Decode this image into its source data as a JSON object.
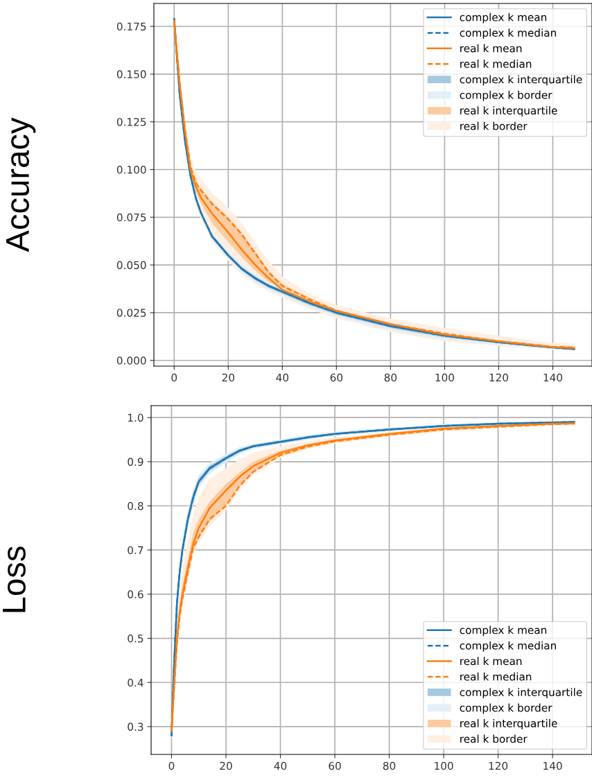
{
  "chart_data": [
    {
      "type": "line",
      "ylabel": "Accuracy",
      "xlim": [
        -7.5,
        154.5
      ],
      "ylim": [
        -0.003,
        0.187
      ],
      "xticks": [
        0,
        20,
        40,
        60,
        80,
        100,
        120,
        140
      ],
      "yticks": [
        {
          "value": 0,
          "label": "0.000"
        },
        {
          "value": 0.025,
          "label": "0.025"
        },
        {
          "value": 0.05,
          "label": "0.050"
        },
        {
          "value": 0.075,
          "label": "0.075"
        },
        {
          "value": 0.1,
          "label": "0.100"
        },
        {
          "value": 0.125,
          "label": "0.125"
        },
        {
          "value": 0.15,
          "label": "0.150"
        },
        {
          "value": 0.175,
          "label": "0.175"
        }
      ],
      "grid": true,
      "legend": "top right",
      "x": [
        0,
        2,
        4,
        6,
        8,
        10,
        14,
        20,
        25,
        30,
        35,
        40,
        50,
        60,
        80,
        100,
        120,
        140,
        148
      ],
      "series": [
        {
          "name": "complex k mean",
          "color": "#1f77b4",
          "line_style": "solid",
          "values": [
            0.179,
            0.14,
            0.115,
            0.097,
            0.085,
            0.077,
            0.065,
            0.055,
            0.048,
            0.043,
            0.039,
            0.036,
            0.03,
            0.025,
            0.018,
            0.013,
            0.0095,
            0.0068,
            0.006
          ]
        },
        {
          "name": "complex k median",
          "color": "#1f77b4",
          "line_style": "dashed",
          "values": [
            0.179,
            0.14,
            0.115,
            0.097,
            0.085,
            0.077,
            0.065,
            0.055,
            0.048,
            0.043,
            0.039,
            0.036,
            0.03,
            0.025,
            0.018,
            0.013,
            0.0095,
            0.0068,
            0.006
          ]
        },
        {
          "name": "real k mean",
          "color": "#ff7f0e",
          "line_style": "solid",
          "values": [
            0.178,
            0.145,
            0.12,
            0.1,
            0.091,
            0.085,
            0.077,
            0.067,
            0.058,
            0.05,
            0.043,
            0.037,
            0.031,
            0.026,
            0.019,
            0.0135,
            0.01,
            0.007,
            0.0065
          ]
        },
        {
          "name": "real k median",
          "color": "#ff7f0e",
          "line_style": "dashed",
          "values": [
            0.178,
            0.146,
            0.121,
            0.102,
            0.093,
            0.089,
            0.082,
            0.074,
            0.066,
            0.056,
            0.046,
            0.039,
            0.032,
            0.026,
            0.019,
            0.014,
            0.01,
            0.0072,
            0.0068
          ]
        },
        {
          "name": "complex k interquartile",
          "type": "area",
          "color": "#a6c9e2",
          "values": [
            null,
            null,
            null,
            null,
            null,
            null,
            null,
            null,
            null,
            null,
            null,
            null,
            null,
            null,
            null,
            null,
            null,
            null,
            null
          ],
          "lower": [
            0.177,
            0.139,
            0.114,
            0.096,
            0.084,
            0.076,
            0.064,
            0.054,
            0.047,
            0.042,
            0.038,
            0.035,
            0.029,
            0.024,
            0.017,
            0.012,
            0.009,
            0.0063,
            0.0055
          ],
          "upper": [
            0.179,
            0.141,
            0.116,
            0.098,
            0.086,
            0.078,
            0.066,
            0.056,
            0.049,
            0.044,
            0.04,
            0.037,
            0.031,
            0.026,
            0.019,
            0.014,
            0.01,
            0.0073,
            0.0065
          ]
        },
        {
          "name": "complex k border",
          "type": "area",
          "color": "#e4eef6",
          "values": [
            null,
            null,
            null,
            null,
            null,
            null,
            null,
            null,
            null,
            null,
            null,
            null,
            null,
            null,
            null,
            null,
            null,
            null,
            null
          ],
          "lower": [
            0.176,
            0.138,
            0.113,
            0.095,
            0.083,
            0.075,
            0.063,
            0.053,
            0.046,
            0.041,
            0.037,
            0.034,
            0.028,
            0.023,
            0.016,
            0.011,
            0.008,
            0.0058,
            0.005
          ],
          "upper": [
            0.18,
            0.142,
            0.117,
            0.099,
            0.087,
            0.079,
            0.067,
            0.057,
            0.05,
            0.045,
            0.041,
            0.038,
            0.032,
            0.027,
            0.02,
            0.015,
            0.011,
            0.0078,
            0.007
          ]
        },
        {
          "name": "real k interquartile",
          "type": "area",
          "color": "#fdcba0",
          "values": [
            null,
            null,
            null,
            null,
            null,
            null,
            null,
            null,
            null,
            null,
            null,
            null,
            null,
            null,
            null,
            null,
            null,
            null,
            null
          ],
          "lower": [
            0.177,
            0.143,
            0.118,
            0.098,
            0.088,
            0.082,
            0.072,
            0.062,
            0.054,
            0.047,
            0.041,
            0.036,
            0.03,
            0.025,
            0.018,
            0.013,
            0.0095,
            0.0066,
            0.006
          ],
          "upper": [
            0.179,
            0.147,
            0.122,
            0.103,
            0.094,
            0.09,
            0.083,
            0.075,
            0.067,
            0.057,
            0.047,
            0.04,
            0.033,
            0.027,
            0.02,
            0.015,
            0.011,
            0.0077,
            0.0072
          ]
        },
        {
          "name": "real k border",
          "type": "area",
          "color": "#ffefe2",
          "values": [
            null,
            null,
            null,
            null,
            null,
            null,
            null,
            null,
            null,
            null,
            null,
            null,
            null,
            null,
            null,
            null,
            null,
            null,
            null
          ],
          "lower": [
            0.175,
            0.137,
            0.112,
            0.094,
            0.082,
            0.074,
            0.062,
            0.052,
            0.045,
            0.04,
            0.036,
            0.033,
            0.027,
            0.022,
            0.015,
            0.01,
            0.0075,
            0.0055,
            0.0048
          ],
          "upper": [
            0.181,
            0.15,
            0.125,
            0.108,
            0.099,
            0.095,
            0.088,
            0.08,
            0.072,
            0.062,
            0.052,
            0.044,
            0.035,
            0.029,
            0.022,
            0.017,
            0.013,
            0.0092,
            0.0088
          ]
        }
      ]
    },
    {
      "type": "line",
      "ylabel": "Loss",
      "xlim": [
        -7.5,
        154.5
      ],
      "ylim": [
        0.237,
        1.027
      ],
      "xticks": [
        0,
        20,
        40,
        60,
        80,
        100,
        120,
        140
      ],
      "yticks": [
        0.3,
        0.4,
        0.5,
        0.6,
        0.7,
        0.8,
        0.9,
        {
          "value": 1.0,
          "label": "1.0"
        }
      ],
      "grid": true,
      "legend": "bottom right",
      "x": [
        0,
        1,
        2,
        3,
        4,
        6,
        8,
        10,
        14,
        20,
        25,
        30,
        40,
        50,
        60,
        80,
        100,
        120,
        140,
        148
      ],
      "series": [
        {
          "name": "complex k mean",
          "color": "#1f77b4",
          "line_style": "solid",
          "values": [
            0.28,
            0.45,
            0.58,
            0.65,
            0.7,
            0.77,
            0.82,
            0.855,
            0.885,
            0.908,
            0.925,
            0.935,
            0.945,
            0.955,
            0.963,
            0.973,
            0.981,
            0.986,
            0.989,
            0.99
          ]
        },
        {
          "name": "complex k median",
          "color": "#1f77b4",
          "line_style": "dashed",
          "values": [
            0.28,
            0.45,
            0.58,
            0.65,
            0.7,
            0.77,
            0.82,
            0.855,
            0.885,
            0.908,
            0.925,
            0.935,
            0.945,
            0.955,
            0.963,
            0.973,
            0.981,
            0.986,
            0.989,
            0.99
          ]
        },
        {
          "name": "real k mean",
          "color": "#ff7f0e",
          "line_style": "solid",
          "values": [
            0.29,
            0.4,
            0.5,
            0.56,
            0.6,
            0.66,
            0.715,
            0.75,
            0.795,
            0.835,
            0.866,
            0.89,
            0.92,
            0.937,
            0.948,
            0.963,
            0.975,
            0.981,
            0.986,
            0.987
          ]
        },
        {
          "name": "real k median",
          "color": "#ff7f0e",
          "line_style": "dashed",
          "values": [
            0.29,
            0.39,
            0.49,
            0.55,
            0.59,
            0.65,
            0.705,
            0.73,
            0.77,
            0.8,
            0.845,
            0.877,
            0.915,
            0.934,
            0.946,
            0.961,
            0.973,
            0.979,
            0.985,
            0.986
          ]
        },
        {
          "name": "complex k interquartile",
          "type": "area",
          "color": "#a6c9e2",
          "values": [
            null,
            null,
            null,
            null,
            null,
            null,
            null,
            null,
            null,
            null,
            null,
            null,
            null,
            null,
            null,
            null,
            null,
            null,
            null,
            null
          ],
          "lower": [
            0.27,
            0.44,
            0.57,
            0.64,
            0.69,
            0.76,
            0.81,
            0.848,
            0.879,
            0.903,
            0.921,
            0.932,
            0.942,
            0.952,
            0.961,
            0.971,
            0.979,
            0.984,
            0.988,
            0.989
          ],
          "upper": [
            0.29,
            0.46,
            0.59,
            0.66,
            0.71,
            0.78,
            0.83,
            0.862,
            0.891,
            0.913,
            0.929,
            0.938,
            0.948,
            0.958,
            0.965,
            0.975,
            0.983,
            0.988,
            0.99,
            0.991
          ]
        },
        {
          "name": "complex k border",
          "type": "area",
          "color": "#e4eef6",
          "values": [
            null,
            null,
            null,
            null,
            null,
            null,
            null,
            null,
            null,
            null,
            null,
            null,
            null,
            null,
            null,
            null,
            null,
            null,
            null,
            null
          ],
          "lower": [
            0.26,
            0.43,
            0.56,
            0.63,
            0.68,
            0.75,
            0.8,
            0.84,
            0.872,
            0.898,
            0.917,
            0.929,
            0.939,
            0.949,
            0.958,
            0.969,
            0.977,
            0.983,
            0.987,
            0.988
          ],
          "upper": [
            0.3,
            0.47,
            0.6,
            0.67,
            0.72,
            0.79,
            0.84,
            0.87,
            0.897,
            0.918,
            0.933,
            0.941,
            0.951,
            0.961,
            0.968,
            0.977,
            0.985,
            0.989,
            0.991,
            0.992
          ]
        },
        {
          "name": "real k interquartile",
          "type": "area",
          "color": "#fdcba0",
          "values": [
            null,
            null,
            null,
            null,
            null,
            null,
            null,
            null,
            null,
            null,
            null,
            null,
            null,
            null,
            null,
            null,
            null,
            null,
            null,
            null
          ],
          "lower": [
            0.28,
            0.38,
            0.48,
            0.54,
            0.58,
            0.64,
            0.7,
            0.725,
            0.765,
            0.8,
            0.843,
            0.875,
            0.913,
            0.932,
            0.944,
            0.959,
            0.971,
            0.978,
            0.984,
            0.985
          ],
          "upper": [
            0.3,
            0.41,
            0.51,
            0.58,
            0.62,
            0.68,
            0.74,
            0.77,
            0.81,
            0.85,
            0.875,
            0.9,
            0.925,
            0.94,
            0.951,
            0.965,
            0.977,
            0.983,
            0.987,
            0.988
          ]
        },
        {
          "name": "real k border",
          "type": "area",
          "color": "#ffefe2",
          "values": [
            null,
            null,
            null,
            null,
            null,
            null,
            null,
            null,
            null,
            null,
            null,
            null,
            null,
            null,
            null,
            null,
            null,
            null,
            null,
            null
          ],
          "lower": [
            0.27,
            0.37,
            0.47,
            0.53,
            0.57,
            0.63,
            0.69,
            0.715,
            0.755,
            0.79,
            0.835,
            0.868,
            0.908,
            0.928,
            0.941,
            0.957,
            0.969,
            0.976,
            0.983,
            0.984
          ],
          "upper": [
            0.31,
            0.43,
            0.53,
            0.61,
            0.66,
            0.72,
            0.78,
            0.82,
            0.86,
            0.885,
            0.905,
            0.92,
            0.935,
            0.946,
            0.955,
            0.968,
            0.979,
            0.985,
            0.988,
            0.989
          ]
        }
      ]
    }
  ]
}
